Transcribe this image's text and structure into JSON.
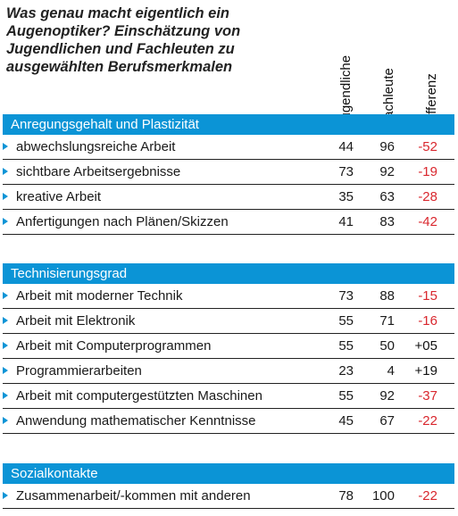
{
  "title": "Was genau macht eigentlich ein Augenoptiker? Einschätzung von Jugendlichen und Fachleuten zu ausgewählten Berufsmerkmalen",
  "columns": [
    "Jugendliche",
    "Fachleute",
    "Differenz"
  ],
  "colors": {
    "header": "#0b94d6",
    "negative": "#d9272e",
    "arrow": "#0b94d6"
  },
  "chart_data": {
    "type": "table",
    "title": "Was genau macht eigentlich ein Augenoptiker? Einschätzung von Jugendlichen und Fachleuten zu ausgewählten Berufsmerkmalen",
    "columns": [
      "Jugendliche",
      "Fachleute",
      "Differenz"
    ],
    "sections": [
      {
        "name": "Anregungsgehalt und Plastizität",
        "rows": [
          {
            "label": "abwechslungsreiche Arbeit",
            "jugendliche": "44",
            "fachleute": "96",
            "differenz": "-52"
          },
          {
            "label": "sichtbare Arbeitsergebnisse",
            "jugendliche": "73",
            "fachleute": "92",
            "differenz": "-19"
          },
          {
            "label": "kreative Arbeit",
            "jugendliche": "35",
            "fachleute": "63",
            "differenz": "-28"
          },
          {
            "label": "Anfertigungen nach Plänen/Skizzen",
            "jugendliche": "41",
            "fachleute": "83",
            "differenz": "-42"
          }
        ]
      },
      {
        "name": "Technisierungsgrad",
        "rows": [
          {
            "label": "Arbeit mit moderner Technik",
            "jugendliche": "73",
            "fachleute": "88",
            "differenz": "-15"
          },
          {
            "label": "Arbeit mit Elektronik",
            "jugendliche": "55",
            "fachleute": "71",
            "differenz": "-16"
          },
          {
            "label": "Arbeit mit Computerprogrammen",
            "jugendliche": "55",
            "fachleute": "50",
            "differenz": "+05"
          },
          {
            "label": "Programmierarbeiten",
            "jugendliche": "23",
            "fachleute": "4",
            "differenz": "+19"
          },
          {
            "label": "Arbeit mit computergestützten Maschinen",
            "jugendliche": "55",
            "fachleute": "92",
            "differenz": "-37"
          },
          {
            "label": "Anwendung mathematischer Kenntnisse",
            "jugendliche": "45",
            "fachleute": "67",
            "differenz": "-22"
          }
        ]
      },
      {
        "name": "Sozialkontakte",
        "rows": [
          {
            "label": "Zusammenarbeit/-kommen mit anderen",
            "jugendliche": "78",
            "fachleute": "100",
            "differenz": "-22"
          }
        ]
      }
    ]
  }
}
